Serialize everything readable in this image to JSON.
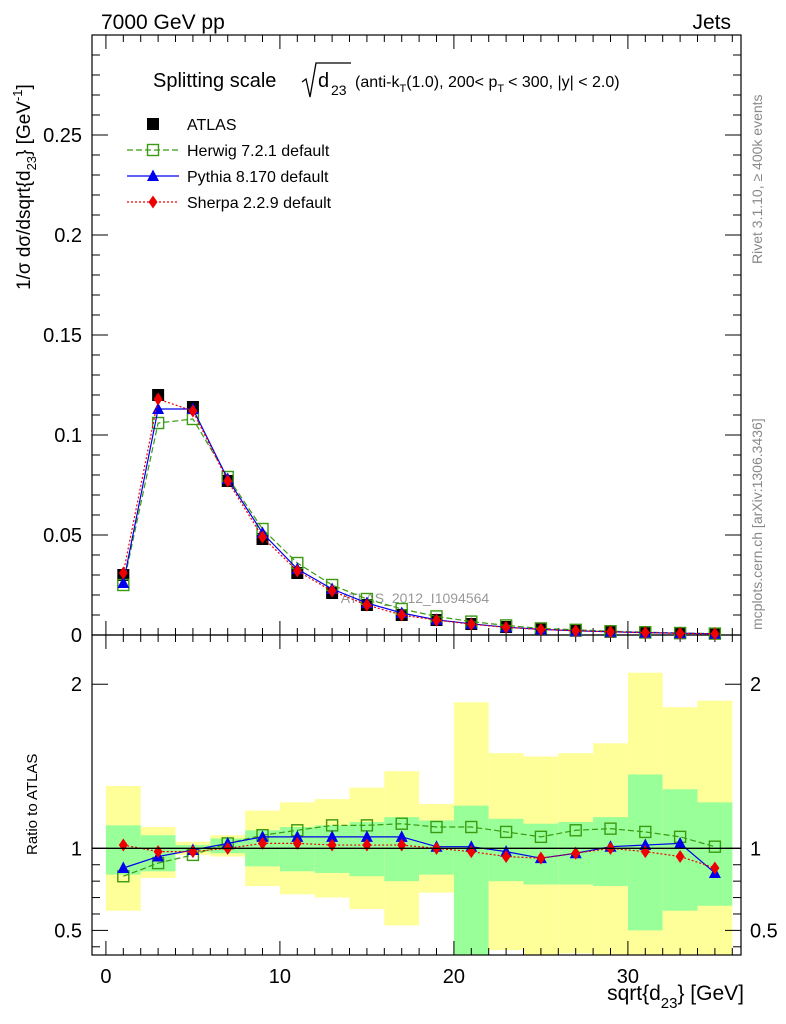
{
  "header": {
    "left": "7000 GeV pp",
    "right": "Jets"
  },
  "side": {
    "rivet": "Rivet 3.1.10, ≥ 400k events",
    "mcplots": "mcplots.cern.ch [arXiv:1306.3436]"
  },
  "title": {
    "prefix": "Splitting scale",
    "sqrt_arg": "d",
    "sqrt_sub": "23",
    "suffix_1": "(anti-k",
    "suffix_sub_1": "T",
    "suffix_2": "(1.0), 200< p",
    "suffix_sub_2": "T",
    "suffix_3": "< 300, |y| < 2.0)"
  },
  "watermark": "ATLAS_2012_I1094564",
  "colors": {
    "atlas": "#000000",
    "herwig": "#3a9a10",
    "pythia": "#0000ee",
    "sherpa": "#ee0000",
    "band_outer": "#ffff99",
    "band_inner": "#99ff99"
  },
  "legend": [
    {
      "key": "atlas",
      "label": "ATLAS",
      "marker": "square-filled",
      "line": "none"
    },
    {
      "key": "herwig",
      "label": "Herwig 7.2.1 default",
      "marker": "square-open",
      "line": "dashed"
    },
    {
      "key": "pythia",
      "label": "Pythia 8.170 default",
      "marker": "triangle",
      "line": "solid"
    },
    {
      "key": "sherpa",
      "label": "Sherpa 2.2.9 default",
      "marker": "diamond",
      "line": "dotted"
    }
  ],
  "chart_data": {
    "type": "line",
    "x": [
      1,
      3,
      5,
      7,
      9,
      11,
      13,
      15,
      17,
      19,
      21,
      23,
      25,
      27,
      29,
      31,
      33,
      35
    ],
    "bin_edges": [
      0,
      2,
      4,
      6,
      8,
      10,
      12,
      14,
      16,
      18,
      20,
      22,
      24,
      26,
      28,
      30,
      32,
      34,
      36
    ],
    "main": {
      "ylabel": "1/σ dσ/dsqrt{d",
      "ylabel_sub": "23",
      "ylabel_end": "} [GeV",
      "ylabel_sup": "-1",
      "ylabel_close": "]",
      "ylim": [
        0,
        0.3
      ],
      "yticks": [
        0,
        0.05,
        0.1,
        0.15,
        0.2,
        0.25
      ],
      "ytick_labels": [
        "0",
        "0.05",
        "0.1",
        "0.15",
        "0.2",
        "0.25"
      ],
      "series": [
        {
          "key": "atlas",
          "name": "ATLAS",
          "values": [
            0.03,
            0.12,
            0.114,
            0.077,
            0.048,
            0.031,
            0.021,
            0.015,
            0.01,
            0.0075,
            0.0055,
            0.004,
            0.003,
            0.0022,
            0.0016,
            0.0012,
            0.0009,
            0.0007
          ]
        },
        {
          "key": "herwig",
          "name": "Herwig 7.2.1 default",
          "values": [
            0.025,
            0.106,
            0.108,
            0.079,
            0.053,
            0.036,
            0.025,
            0.018,
            0.013,
            0.0093,
            0.0067,
            0.0048,
            0.0033,
            0.0026,
            0.0019,
            0.0014,
            0.001,
            0.0007
          ]
        },
        {
          "key": "pythia",
          "name": "Pythia 8.170 default",
          "values": [
            0.026,
            0.113,
            0.113,
            0.078,
            0.051,
            0.033,
            0.023,
            0.016,
            0.011,
            0.0076,
            0.0056,
            0.0039,
            0.0028,
            0.0021,
            0.0016,
            0.0012,
            0.0009,
            0.0006
          ]
        },
        {
          "key": "sherpa",
          "name": "Sherpa 2.2.9 default",
          "values": [
            0.031,
            0.118,
            0.112,
            0.077,
            0.049,
            0.032,
            0.022,
            0.015,
            0.01,
            0.0074,
            0.0054,
            0.0038,
            0.0028,
            0.0021,
            0.0016,
            0.0012,
            0.0008,
            0.0006
          ]
        }
      ]
    },
    "ratio": {
      "ylabel": "Ratio to ATLAS",
      "ylim": [
        0.35,
        2.3
      ],
      "yticks": [
        0.5,
        1,
        2
      ],
      "ytick_labels": [
        "0.5",
        "1",
        "2"
      ],
      "band_inner_lo": [
        0.84,
        0.86,
        0.98,
        0.97,
        0.89,
        0.86,
        0.85,
        0.83,
        0.8,
        0.84,
        0.35,
        0.8,
        0.78,
        0.78,
        0.77,
        0.5,
        0.62,
        0.65
      ],
      "band_inner_hi": [
        1.14,
        1.08,
        1.02,
        1.06,
        1.11,
        1.13,
        1.14,
        1.16,
        1.19,
        1.17,
        1.26,
        1.18,
        1.15,
        1.16,
        1.19,
        1.45,
        1.36,
        1.28
      ],
      "band_outer_lo": [
        0.62,
        0.82,
        0.96,
        0.95,
        0.77,
        0.72,
        0.7,
        0.63,
        0.53,
        0.73,
        0.35,
        0.38,
        0.33,
        0.36,
        0.33,
        0.35,
        0.35,
        0.35
      ],
      "band_outer_hi": [
        1.38,
        1.13,
        1.04,
        1.08,
        1.23,
        1.28,
        1.3,
        1.37,
        1.47,
        1.27,
        1.89,
        1.58,
        1.56,
        1.58,
        1.64,
        2.07,
        1.86,
        1.9
      ],
      "series": [
        {
          "key": "herwig",
          "name": "Herwig 7.2.1 default",
          "values": [
            0.83,
            0.91,
            0.96,
            1.03,
            1.08,
            1.11,
            1.14,
            1.14,
            1.15,
            1.13,
            1.13,
            1.1,
            1.07,
            1.11,
            1.12,
            1.1,
            1.07,
            1.01
          ]
        },
        {
          "key": "pythia",
          "name": "Pythia 8.170 default",
          "values": [
            0.88,
            0.95,
            0.99,
            1.03,
            1.07,
            1.07,
            1.07,
            1.07,
            1.07,
            1.01,
            1.01,
            0.98,
            0.94,
            0.97,
            1.01,
            1.02,
            1.03,
            0.85
          ]
        },
        {
          "key": "sherpa",
          "name": "Sherpa 2.2.9 default",
          "values": [
            1.02,
            0.98,
            0.98,
            1.0,
            1.03,
            1.03,
            1.02,
            1.02,
            1.02,
            1.0,
            0.98,
            0.95,
            0.94,
            0.97,
            1.0,
            0.98,
            0.95,
            0.88
          ]
        }
      ]
    },
    "xlim": [
      -0.8,
      36.5
    ],
    "xticks": [
      0,
      10,
      20,
      30
    ],
    "xtick_labels": [
      "0",
      "10",
      "20",
      "30"
    ],
    "xlabel": "sqrt{d",
    "xlabel_sub": "23",
    "xlabel_end": "} [GeV]"
  }
}
